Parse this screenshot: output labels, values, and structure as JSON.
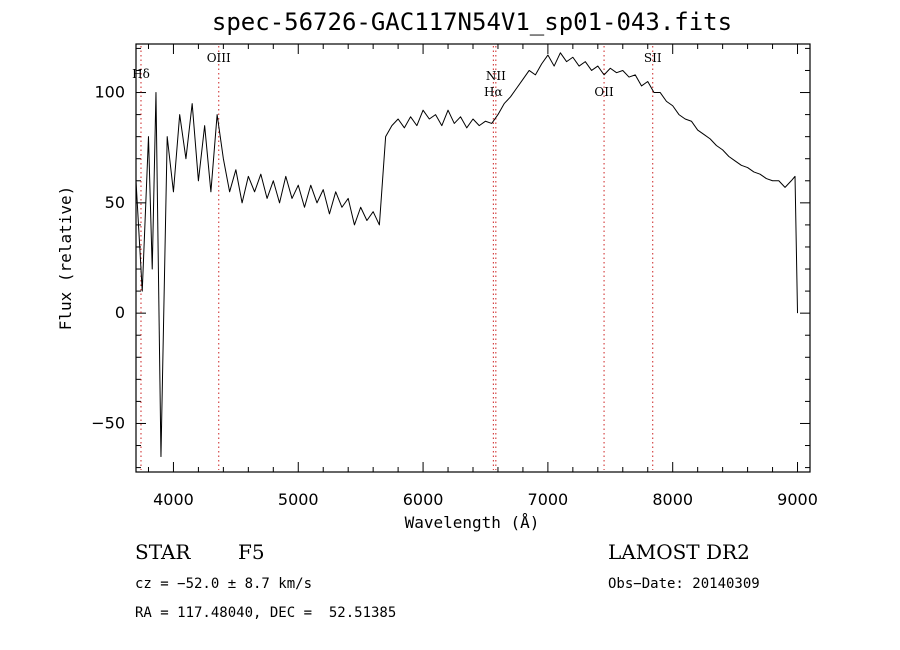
{
  "chart_data": {
    "type": "line",
    "title": "spec-56726-GAC117N54V1_sp01-043.fits",
    "xlabel": "Wavelength (Å)",
    "ylabel": "Flux (relative)",
    "xlim": [
      3700,
      9100
    ],
    "ylim": [
      -72,
      122
    ],
    "x_ticks": [
      4000,
      5000,
      6000,
      7000,
      8000,
      9000
    ],
    "y_ticks": [
      -50,
      0,
      50,
      100
    ],
    "grid": false,
    "series": [
      {
        "name": "",
        "x": [
          3700,
          3750,
          3800,
          3830,
          3860,
          3900,
          3950,
          4000,
          4050,
          4100,
          4150,
          4200,
          4250,
          4300,
          4350,
          4400,
          4450,
          4500,
          4550,
          4600,
          4650,
          4700,
          4750,
          4800,
          4850,
          4900,
          4950,
          5000,
          5050,
          5100,
          5150,
          5200,
          5250,
          5300,
          5350,
          5400,
          5450,
          5500,
          5550,
          5600,
          5650,
          5700,
          5750,
          5800,
          5850,
          5900,
          5950,
          6000,
          6050,
          6100,
          6150,
          6200,
          6250,
          6300,
          6350,
          6400,
          6450,
          6500,
          6550,
          6600,
          6650,
          6700,
          6750,
          6800,
          6850,
          6900,
          6950,
          7000,
          7050,
          7100,
          7150,
          7200,
          7250,
          7300,
          7350,
          7400,
          7450,
          7500,
          7550,
          7600,
          7650,
          7700,
          7750,
          7800,
          7850,
          7900,
          7950,
          8000,
          8050,
          8100,
          8150,
          8200,
          8250,
          8300,
          8350,
          8400,
          8450,
          8500,
          8550,
          8600,
          8650,
          8700,
          8750,
          8800,
          8850,
          8900,
          8950,
          8980,
          9000
        ],
        "y": [
          60,
          10,
          80,
          20,
          100,
          -65,
          80,
          55,
          90,
          70,
          95,
          60,
          85,
          55,
          90,
          70,
          55,
          65,
          50,
          62,
          55,
          63,
          52,
          60,
          50,
          62,
          52,
          58,
          48,
          58,
          50,
          56,
          45,
          55,
          48,
          52,
          40,
          48,
          42,
          46,
          40,
          80,
          85,
          88,
          84,
          89,
          85,
          92,
          88,
          90,
          85,
          92,
          86,
          89,
          84,
          88,
          85,
          87,
          86,
          90,
          95,
          98,
          102,
          106,
          110,
          108,
          113,
          117,
          112,
          118,
          114,
          116,
          112,
          114,
          110,
          112,
          108,
          111,
          109,
          110,
          107,
          108,
          103,
          105,
          100,
          100,
          96,
          94,
          90,
          88,
          87,
          83,
          81,
          79,
          76,
          74,
          71,
          69,
          67,
          66,
          64,
          63,
          61,
          60,
          60,
          57,
          60,
          62,
          0
        ]
      }
    ],
    "annotations": [
      {
        "label": "Hδ",
        "x": 3740
      },
      {
        "label": "OIII",
        "x": 4363
      },
      {
        "label": "NII",
        "x": 6583
      },
      {
        "label": "Hα",
        "x": 6563
      },
      {
        "label": "OII",
        "x": 7450
      },
      {
        "label": "SII",
        "x": 7840
      }
    ],
    "colors": {
      "line": "#000000",
      "marker_line": "#cc2222",
      "axes": "#000000"
    }
  },
  "footer": {
    "object_class": "STAR",
    "subclass": "F5",
    "survey": "LAMOST DR2",
    "velocity": "cz = −52.0 ± 8.7 km/s",
    "obs_date": "Obs−Date: 20140309",
    "coordinates": "RA = 117.48040, DEC =  52.51385"
  }
}
